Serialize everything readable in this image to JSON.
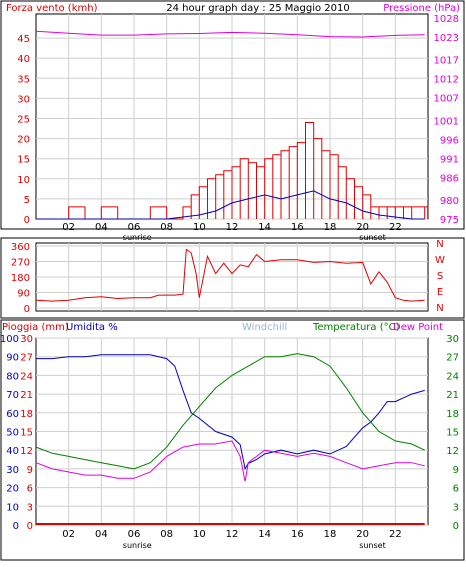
{
  "chart_data": [
    {
      "type": "line",
      "title": "24 hour graph day : 25 Maggio 2010",
      "ylabel_left": "Forza vento (kmh)",
      "ylabel_right": "Pressione (hPa)",
      "xticks": [
        "02",
        "04",
        "06",
        "08",
        "10",
        "12",
        "14",
        "16",
        "18",
        "20",
        "22"
      ],
      "x_markers": [
        "sunrise",
        "sunset"
      ],
      "ylim_left": [
        0,
        50
      ],
      "yticks_left": [
        0,
        5,
        10,
        15,
        20,
        25,
        30,
        35,
        40,
        45
      ],
      "ylim_right": [
        975,
        1028
      ],
      "yticks_right": [
        975,
        980,
        986,
        991,
        996,
        1001,
        1007,
        1012,
        1017,
        1023,
        1028
      ],
      "grid": true,
      "colors": {
        "wind_gust": "#e00000",
        "wind_avg": "#0000c0",
        "pressure": "#e000e0"
      },
      "series": [
        {
          "name": "Forza vento (kmh)",
          "axis": "left",
          "x": [
            0,
            1,
            2,
            3,
            4,
            5,
            6,
            7,
            8,
            9,
            9.5,
            10,
            10.5,
            11,
            11.5,
            12,
            12.5,
            13,
            13.5,
            14,
            14.5,
            15,
            15.5,
            16,
            16.5,
            17,
            17.5,
            18,
            18.5,
            19,
            19.5,
            20,
            20.5,
            21,
            21.5,
            22,
            22.5,
            23,
            23.8
          ],
          "values": [
            0,
            0,
            3,
            0,
            3,
            0,
            0,
            3,
            0,
            3,
            6,
            8,
            10,
            11,
            12,
            13,
            15,
            14,
            13,
            15,
            16,
            17,
            18,
            19,
            24,
            20,
            17,
            16,
            13,
            10,
            8,
            6,
            3,
            3,
            3,
            3,
            3,
            3,
            3
          ]
        },
        {
          "name": "wind average",
          "axis": "left",
          "x": [
            0,
            2,
            4,
            6,
            8,
            9,
            10,
            11,
            12,
            13,
            14,
            15,
            16,
            17,
            18,
            19,
            20,
            21,
            22,
            23,
            23.8
          ],
          "values": [
            0,
            0,
            0,
            0,
            0,
            0.5,
            1,
            2,
            4,
            5,
            6,
            5,
            6,
            7,
            5,
            4,
            2,
            1,
            0.5,
            0,
            0
          ]
        },
        {
          "name": "Pressione (hPa)",
          "axis": "right",
          "x": [
            0,
            2,
            4,
            6,
            8,
            10,
            12,
            14,
            16,
            18,
            20,
            22,
            23.8
          ],
          "values": [
            1024.5,
            1024.0,
            1023.5,
            1023.5,
            1023.8,
            1023.9,
            1024.2,
            1024.0,
            1023.6,
            1023.1,
            1023.0,
            1023.4,
            1023.6
          ]
        }
      ]
    },
    {
      "type": "line",
      "ylabel_left": "",
      "yticks_left": [
        0,
        90,
        180,
        270,
        360
      ],
      "ylim_left": [
        0,
        360
      ],
      "yticks_right": [
        "N",
        "E",
        "S",
        "W",
        "N"
      ],
      "colors": {
        "direction": "#e00000"
      },
      "series": [
        {
          "name": "direction",
          "x": [
            0,
            1,
            2,
            3,
            4,
            5,
            6,
            7,
            7.5,
            8,
            8.5,
            9,
            9.2,
            9.5,
            9.8,
            10,
            10.5,
            11,
            11.5,
            12,
            12.5,
            13,
            13.5,
            14,
            15,
            16,
            17,
            18,
            19,
            20,
            20.5,
            21,
            21.5,
            22,
            22.5,
            23,
            23.8
          ],
          "values": [
            45,
            40,
            45,
            60,
            65,
            55,
            60,
            60,
            75,
            75,
            75,
            80,
            340,
            320,
            200,
            60,
            300,
            200,
            260,
            200,
            250,
            240,
            310,
            270,
            280,
            280,
            265,
            270,
            260,
            265,
            140,
            210,
            150,
            60,
            45,
            40,
            45
          ]
        }
      ]
    },
    {
      "type": "line",
      "ylabel_left": "Pioggia (mm)",
      "ylabel_left2": "Umidita %",
      "labels_top": [
        "Windchill",
        "Temperatura (°C)",
        "Dew Point"
      ],
      "xticks": [
        "02",
        "04",
        "06",
        "08",
        "10",
        "12",
        "14",
        "16",
        "18",
        "20",
        "22"
      ],
      "x_markers": [
        "sunrise",
        "sunset"
      ],
      "yticks_rain": [
        0,
        3,
        6,
        9,
        12,
        15,
        18,
        21,
        24,
        27,
        30
      ],
      "yticks_humidity": [
        0,
        10,
        20,
        30,
        40,
        50,
        60,
        70,
        80,
        90,
        100
      ],
      "yticks_temp_right": [
        0,
        3,
        6,
        9,
        12,
        15,
        18,
        21,
        24,
        27,
        30
      ],
      "ylim_temp": [
        0,
        30
      ],
      "colors": {
        "humidity": "#0000c0",
        "temperature": "#008000",
        "dewpoint": "#e000e0",
        "rain": "#e00000"
      },
      "series": [
        {
          "name": "Umidita %",
          "axis": "humidity",
          "x": [
            0,
            1,
            2,
            3,
            4,
            5,
            6,
            7,
            8,
            8.5,
            9,
            9.5,
            10,
            11,
            12,
            12.5,
            12.8,
            13,
            13.5,
            14,
            15,
            16,
            17,
            18,
            19,
            20,
            20.5,
            21,
            21.5,
            22,
            22.5,
            23,
            23.8
          ],
          "values": [
            89,
            89,
            90,
            90,
            91,
            91,
            91,
            91,
            89,
            85,
            72,
            60,
            57,
            50,
            47,
            43,
            30,
            33,
            35,
            38,
            40,
            38,
            40,
            38,
            42,
            52,
            55,
            60,
            66,
            66,
            68,
            70,
            72
          ]
        },
        {
          "name": "Temperatura (°C)",
          "axis": "temp",
          "x": [
            0,
            1,
            2,
            3,
            4,
            5,
            6,
            7,
            8,
            9,
            10,
            11,
            12,
            13,
            14,
            15,
            16,
            17,
            18,
            19,
            20,
            21,
            22,
            23,
            23.8
          ],
          "values": [
            12.5,
            11.5,
            11,
            10.5,
            10,
            9.5,
            9,
            10,
            12.5,
            16,
            19,
            22,
            24,
            25.5,
            27,
            27,
            27.5,
            27,
            25.5,
            22,
            18,
            15,
            13.5,
            13,
            12
          ]
        },
        {
          "name": "Dew Point",
          "axis": "temp",
          "x": [
            0,
            1,
            2,
            3,
            4,
            5,
            6,
            7,
            8,
            9,
            10,
            11,
            12,
            12.5,
            12.8,
            13,
            13.5,
            14,
            15,
            16,
            17,
            18,
            19,
            20,
            21,
            22,
            23,
            23.8
          ],
          "values": [
            10,
            9,
            8.5,
            8,
            8,
            7.5,
            7.5,
            8.5,
            11,
            12.5,
            13,
            13,
            13.5,
            11,
            7,
            10,
            11,
            12,
            11.5,
            11,
            11.5,
            11,
            10,
            9,
            9.5,
            10,
            10,
            9.5
          ]
        },
        {
          "name": "Pioggia (mm)",
          "axis": "rain",
          "x": [
            0,
            23.8
          ],
          "values": [
            0,
            0
          ]
        }
      ]
    }
  ]
}
